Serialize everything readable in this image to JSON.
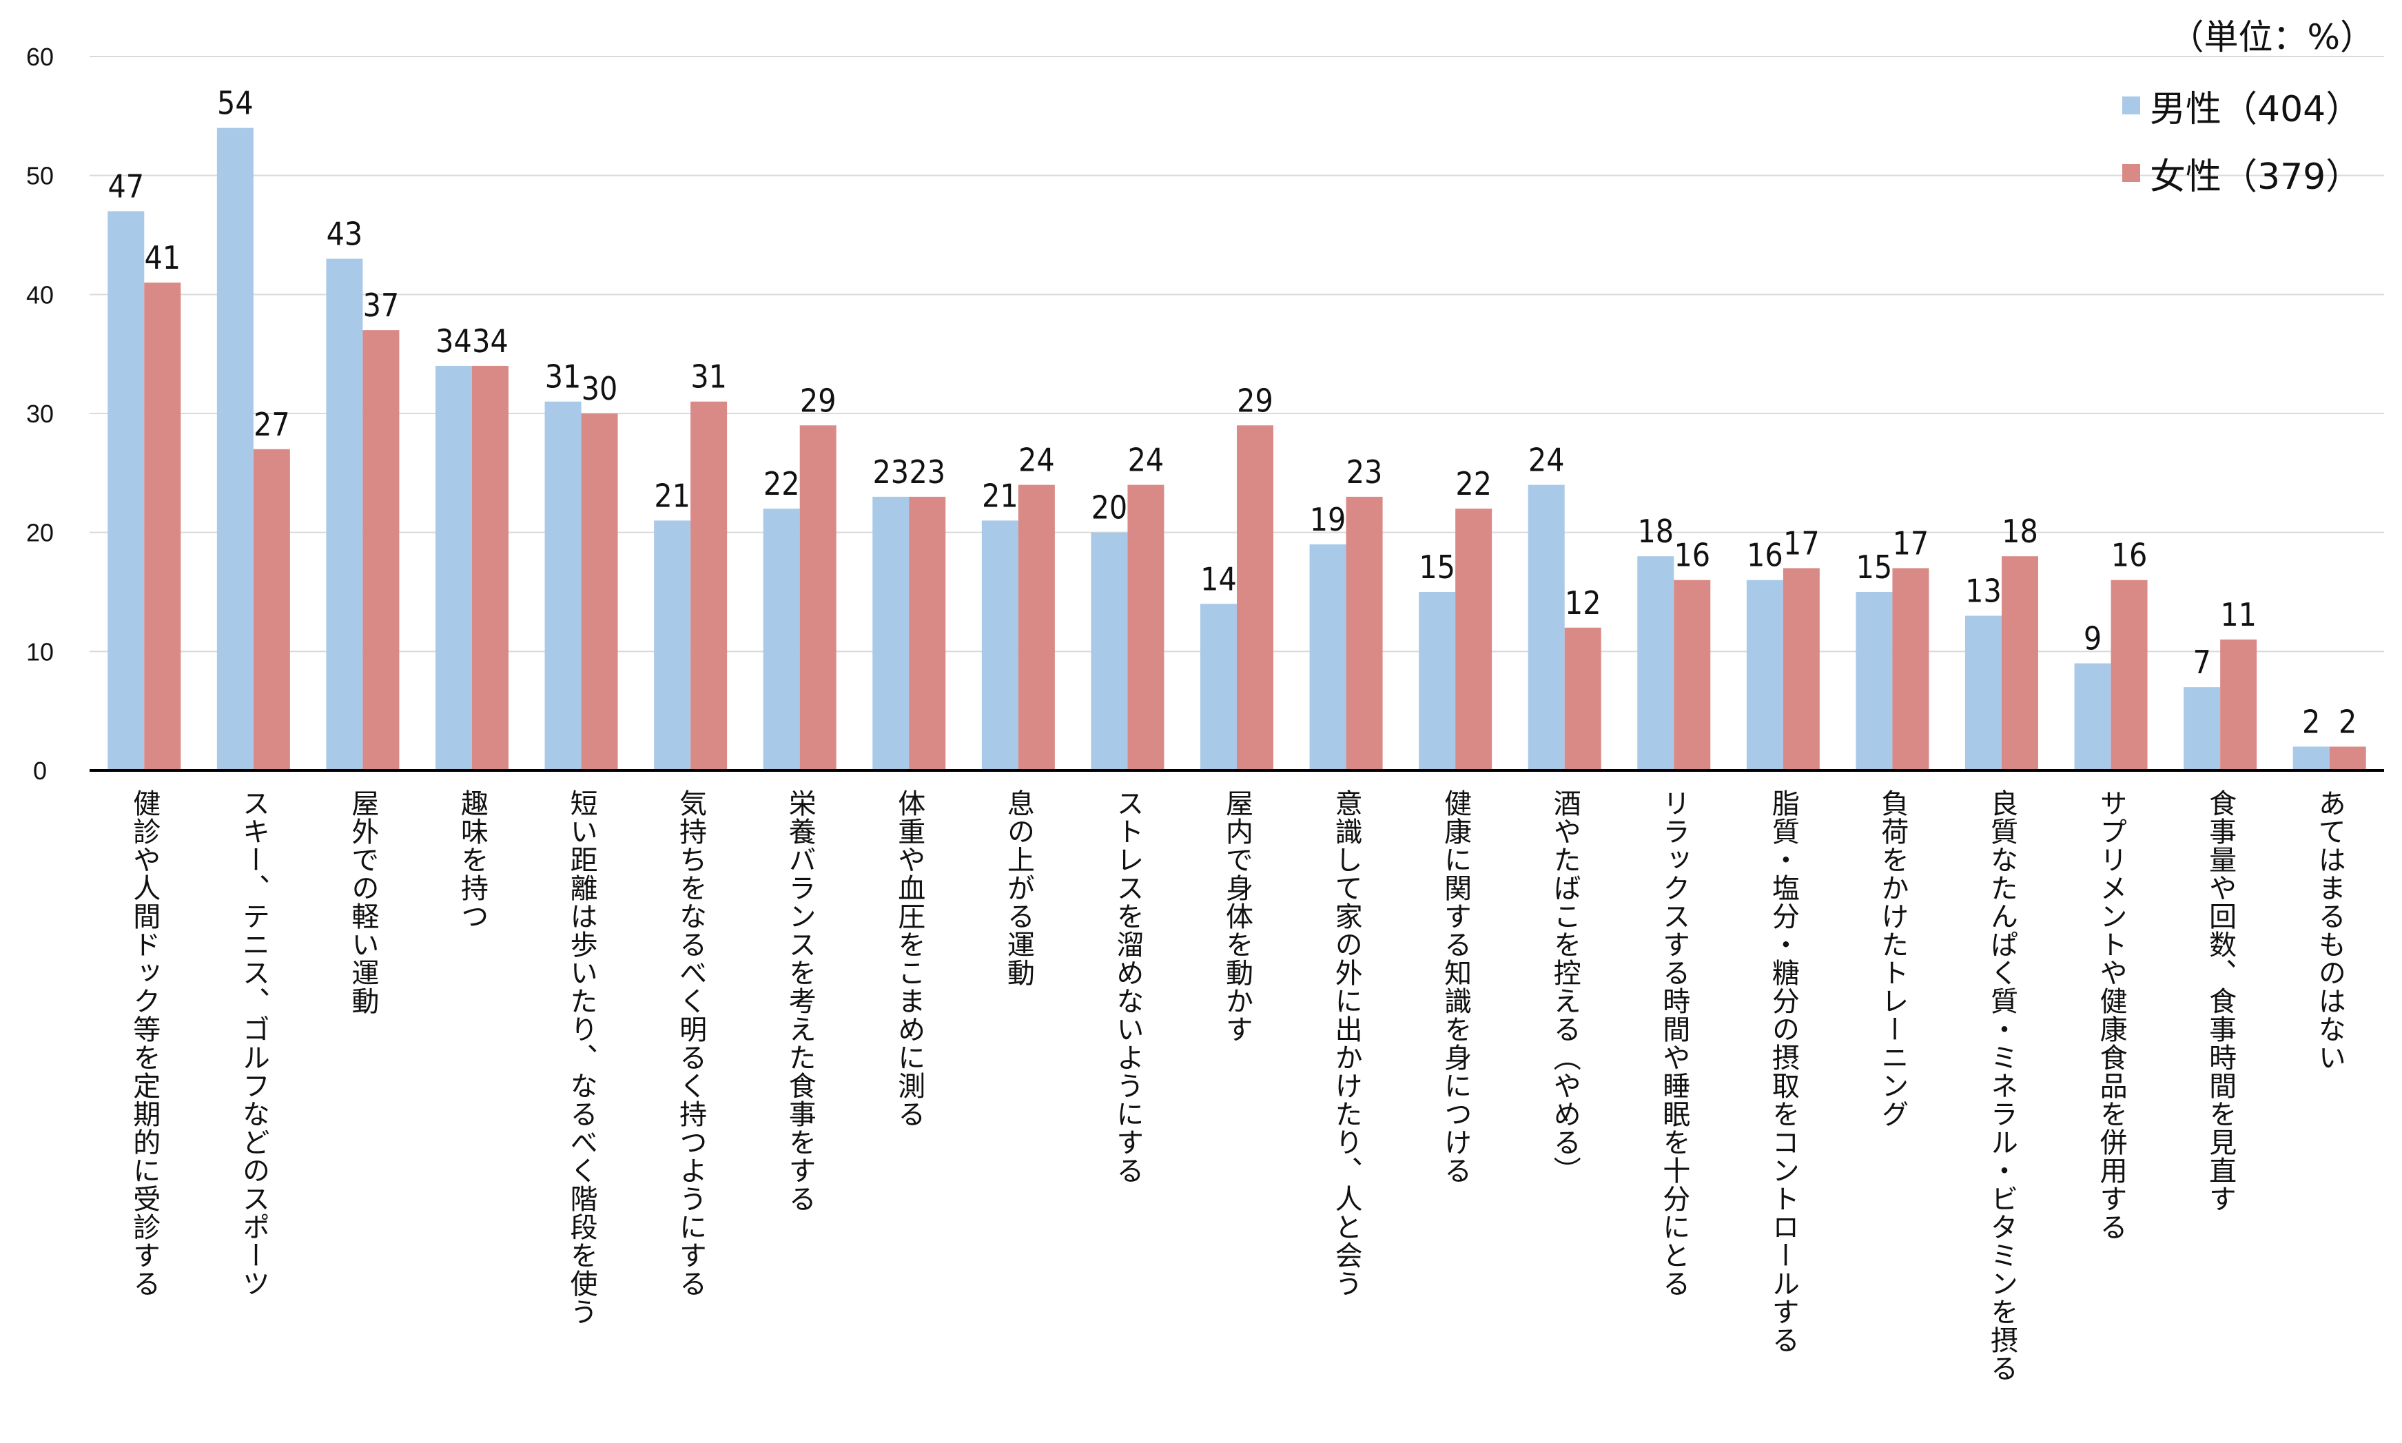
{
  "unit_label": "（単位：%）",
  "colors": {
    "male": "#A9C9E8",
    "female": "#D98A87",
    "grid": "#D9D9D9",
    "axis": "#000000"
  },
  "chart_data": {
    "type": "bar",
    "title": "",
    "xlabel": "",
    "ylabel": "",
    "ylim": [
      0,
      60
    ],
    "yticks": [
      0,
      10,
      20,
      30,
      40,
      50,
      60
    ],
    "grid": true,
    "legend_position": "top-right",
    "categories": [
      "健診や人間ドック等を定期的に受診する",
      "スキー、テニス、ゴルフなどのスポーツ",
      "屋外での軽い運動",
      "趣味を持つ",
      "短い距離は歩いたり、なるべく階段を使う",
      "気持ちをなるべく明るく持つようにする",
      "栄養バランスを考えた食事をする",
      "体重や血圧をこまめに測る",
      "息の上がる運動",
      "ストレスを溜めないようにする",
      "屋内で身体を動かす",
      "意識して家の外に出かけたり、人と会う",
      "健康に関する知識を身につける",
      "酒やたばこを控える（やめる）",
      "リラックスする時間や睡眠を十分にとる",
      "脂質・塩分・糖分の摂取をコントロールする",
      "負荷をかけたトレーニング",
      "良質なたんぱく質・ミネラル・ビタミンを摂る",
      "サプリメントや健康食品を併用する",
      "食事量や回数、食事時間を見直す",
      "あてはまるものはない"
    ],
    "series": [
      {
        "name": "男性（404）",
        "values": [
          47,
          54,
          43,
          34,
          31,
          21,
          22,
          23,
          21,
          20,
          14,
          19,
          15,
          24,
          18,
          16,
          15,
          13,
          9,
          7,
          2
        ]
      },
      {
        "name": "女性（379）",
        "values": [
          41,
          27,
          37,
          34,
          30,
          31,
          29,
          23,
          24,
          24,
          29,
          23,
          22,
          12,
          16,
          17,
          17,
          18,
          16,
          11,
          2
        ]
      }
    ]
  }
}
